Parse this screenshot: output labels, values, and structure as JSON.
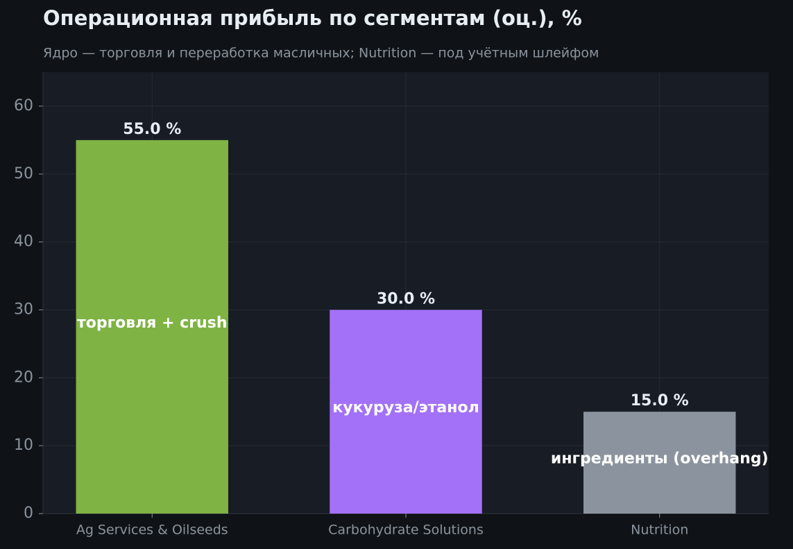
{
  "chart_data": {
    "type": "bar",
    "title": "Операционная прибыль по сегментам (оц.), %",
    "subtitle": "Ядро — торговля и переработка масличных; Nutrition — под учётным шлейфом",
    "categories": [
      "Ag Services & Oilseeds",
      "Carbohydrate Solutions",
      "Nutrition"
    ],
    "values": [
      55.0,
      30.0,
      15.0
    ],
    "value_labels": [
      "55.0 %",
      "30.0 %",
      "15.0 %"
    ],
    "annotations": [
      "торговля + crush",
      "кукуруза/этанол",
      "ингредиенты (overhang)"
    ],
    "colors": [
      "#7fb344",
      "#a371f7",
      "#8b949e"
    ],
    "ylim": [
      0,
      65
    ],
    "yticks": [
      0,
      10,
      20,
      30,
      40,
      50,
      60
    ],
    "grid": true
  }
}
